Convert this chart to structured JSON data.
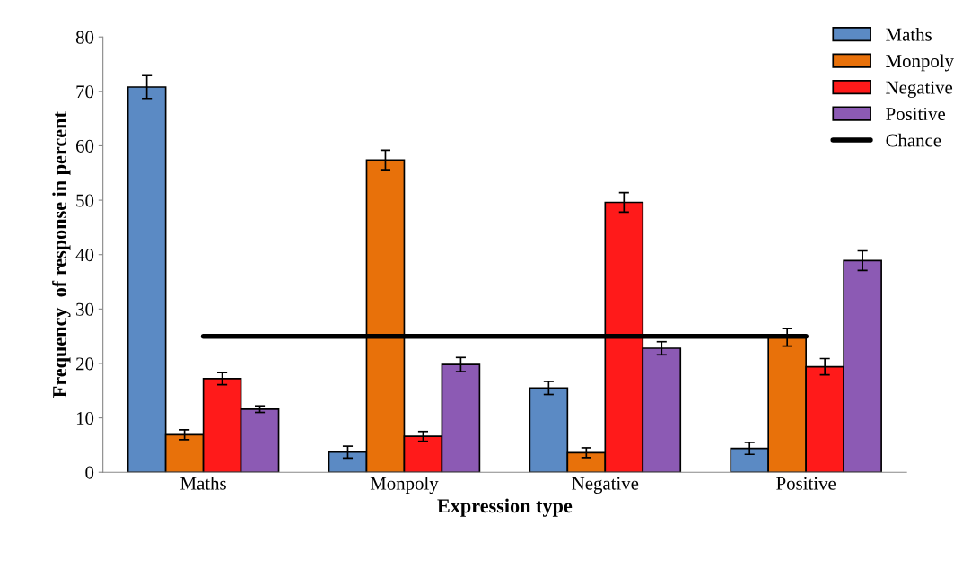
{
  "chart_data": {
    "type": "bar",
    "xlabel": "Expression type",
    "ylabel": "Frequency  of response in percent",
    "categories": [
      "Maths",
      "Monpoly",
      "Negative",
      "Positive"
    ],
    "series": [
      {
        "name": "Maths",
        "color": "#5b8ac4",
        "values": [
          70.8,
          3.7,
          15.5,
          4.4
        ],
        "errors": [
          2.1,
          1.1,
          1.2,
          1.1
        ]
      },
      {
        "name": "Monpoly",
        "color": "#e8710a",
        "values": [
          6.9,
          57.4,
          3.6,
          24.8
        ],
        "errors": [
          0.9,
          1.8,
          0.9,
          1.6
        ]
      },
      {
        "name": "Negative",
        "color": "#ff1a1a",
        "values": [
          17.2,
          6.6,
          49.6,
          19.4
        ],
        "errors": [
          1.1,
          0.9,
          1.8,
          1.5
        ]
      },
      {
        "name": "Positive",
        "color": "#8c5ab4",
        "values": [
          11.6,
          19.8,
          22.8,
          38.9
        ],
        "errors": [
          0.6,
          1.3,
          1.2,
          1.8
        ]
      },
      {
        "name": "Chance",
        "type": "line",
        "color": "#000000",
        "values": [
          25,
          25,
          25,
          25
        ]
      }
    ],
    "ylim": [
      0,
      80
    ],
    "yticks": [
      0,
      10,
      20,
      30,
      40,
      50,
      60,
      70,
      80
    ],
    "grid": false,
    "legend": "top right",
    "marker": "none"
  }
}
